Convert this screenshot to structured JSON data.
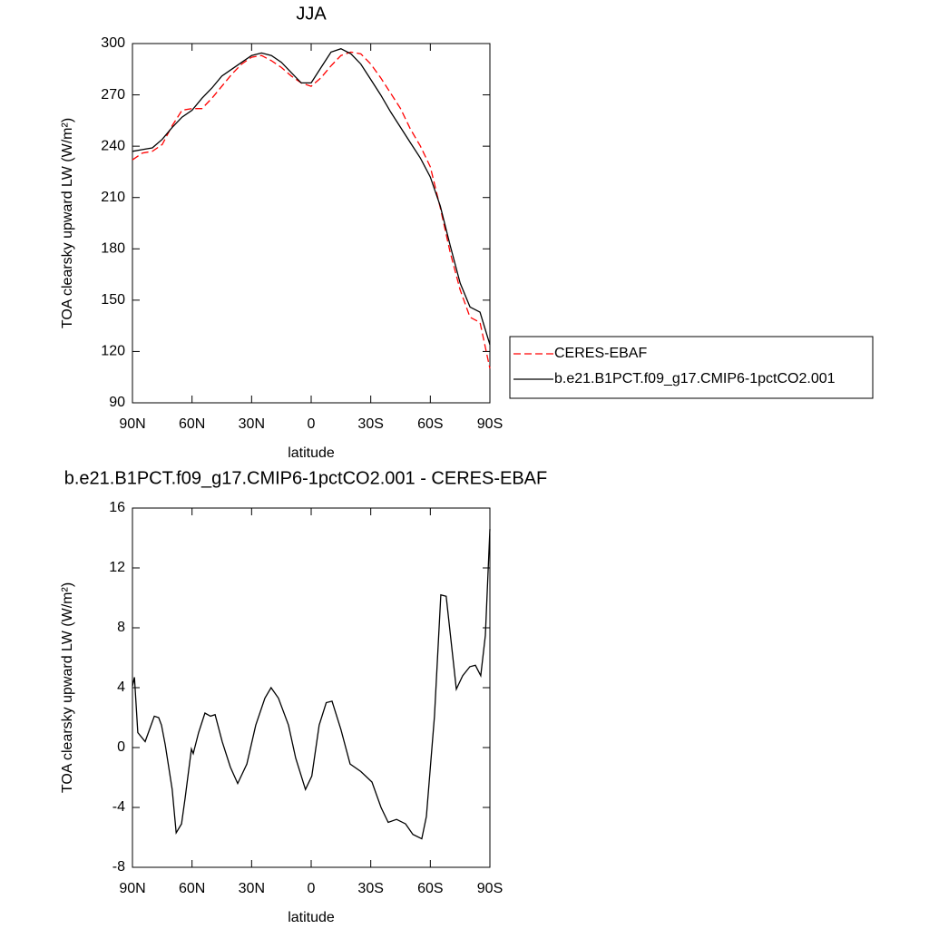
{
  "chart_data": [
    {
      "type": "line",
      "title": "JJA",
      "xlabel": "latitude",
      "ylabel": "TOA clearsky upward LW (W/m²)",
      "x": [
        90,
        85,
        80,
        75,
        70,
        65,
        60,
        55,
        50,
        45,
        40,
        35,
        30,
        25,
        20,
        15,
        10,
        5,
        0,
        -5,
        -10,
        -15,
        -20,
        -25,
        -30,
        -35,
        -40,
        -45,
        -50,
        -55,
        -60,
        -65,
        -70,
        -75,
        -80,
        -85,
        -90
      ],
      "xlim": [
        90,
        -90
      ],
      "xticks": [
        {
          "value": 90,
          "label": "90N"
        },
        {
          "value": 60,
          "label": "60N"
        },
        {
          "value": 30,
          "label": "30N"
        },
        0,
        {
          "value": -30,
          "label": "30S"
        },
        {
          "value": -60,
          "label": "60S"
        },
        {
          "value": -90,
          "label": "90S"
        }
      ],
      "ylim": [
        90,
        300
      ],
      "yticks": [
        90,
        120,
        150,
        180,
        210,
        240,
        270,
        300
      ],
      "legend": "right",
      "series": [
        {
          "name": "CERES-EBAF",
          "color": "#ff0000",
          "dashed": true,
          "values": [
            232,
            236,
            237,
            241,
            252,
            261,
            262,
            262,
            268,
            275,
            282,
            288,
            292,
            293,
            290,
            286,
            281,
            277,
            275,
            280,
            287,
            293,
            295,
            294,
            288,
            280,
            271,
            262,
            250,
            240,
            228,
            204,
            178,
            156,
            140,
            137,
            110
          ]
        },
        {
          "name": "b.e21.B1PCT.f09_g17.CMIP6-1pctCO2.001",
          "color": "#000000",
          "dashed": false,
          "values": [
            237,
            238,
            239,
            244,
            251,
            257,
            261,
            268,
            274,
            281,
            285,
            289,
            293,
            294.5,
            293,
            289,
            283,
            277,
            277,
            286,
            295,
            297,
            294,
            288,
            279,
            270,
            260,
            251,
            242,
            233,
            222,
            205,
            182,
            160,
            146,
            143,
            124
          ]
        }
      ]
    },
    {
      "type": "line",
      "title": "b.e21.B1PCT.f09_g17.CMIP6-1pctCO2.001 - CERES-EBAF",
      "xlabel": "latitude",
      "ylabel": "TOA clearsky upward LW (W/m²)",
      "x": [
        90,
        89,
        87.3,
        83.6,
        79,
        76.8,
        75.4,
        73.5,
        70,
        68,
        65.3,
        63.5,
        60.3,
        59.4,
        56.7,
        53.5,
        50.7,
        48.4,
        44.8,
        40.7,
        37,
        32.4,
        27.9,
        23.3,
        20.2,
        16.5,
        11.4,
        7.8,
        2.9,
        -0.3,
        -4,
        -7.6,
        -10.5,
        -15,
        -19.6,
        -25,
        -30.6,
        -35.2,
        -38.8,
        -43,
        -47.5,
        -51.2,
        -55.7,
        -58,
        -62.1,
        -65.3,
        -68,
        -73.1,
        -76.3,
        -79.9,
        -82.7,
        -85.4,
        -87.7,
        -90
      ],
      "values": [
        4.1,
        4.7,
        1.0,
        0.4,
        2.1,
        2.0,
        1.5,
        0.2,
        -2.8,
        -5.7,
        -5.1,
        -3.4,
        -0.1,
        -0.4,
        1.0,
        2.3,
        2.1,
        2.2,
        0.4,
        -1.3,
        -2.4,
        -1.1,
        1.5,
        3.3,
        4.0,
        3.3,
        1.5,
        -0.7,
        -2.8,
        -1.9,
        1.5,
        3.0,
        3.1,
        1.2,
        -1.1,
        -1.6,
        -2.3,
        -4.0,
        -5.0,
        -4.8,
        -5.1,
        -5.8,
        -6.1,
        -4.6,
        2.1,
        10.2,
        10.1,
        3.9,
        4.8,
        5.4,
        5.5,
        4.8,
        7.5,
        14.6
      ],
      "color": "#000000",
      "xlim": [
        90,
        -90
      ],
      "xticks": [
        {
          "value": 90,
          "label": "90N"
        },
        {
          "value": 60,
          "label": "60N"
        },
        {
          "value": 30,
          "label": "30N"
        },
        0,
        {
          "value": -30,
          "label": "30S"
        },
        {
          "value": -60,
          "label": "60S"
        },
        {
          "value": -90,
          "label": "90S"
        }
      ],
      "ylim": [
        -8,
        16
      ],
      "yticks": [
        -8,
        -4,
        0,
        4,
        8,
        12,
        16
      ]
    }
  ]
}
